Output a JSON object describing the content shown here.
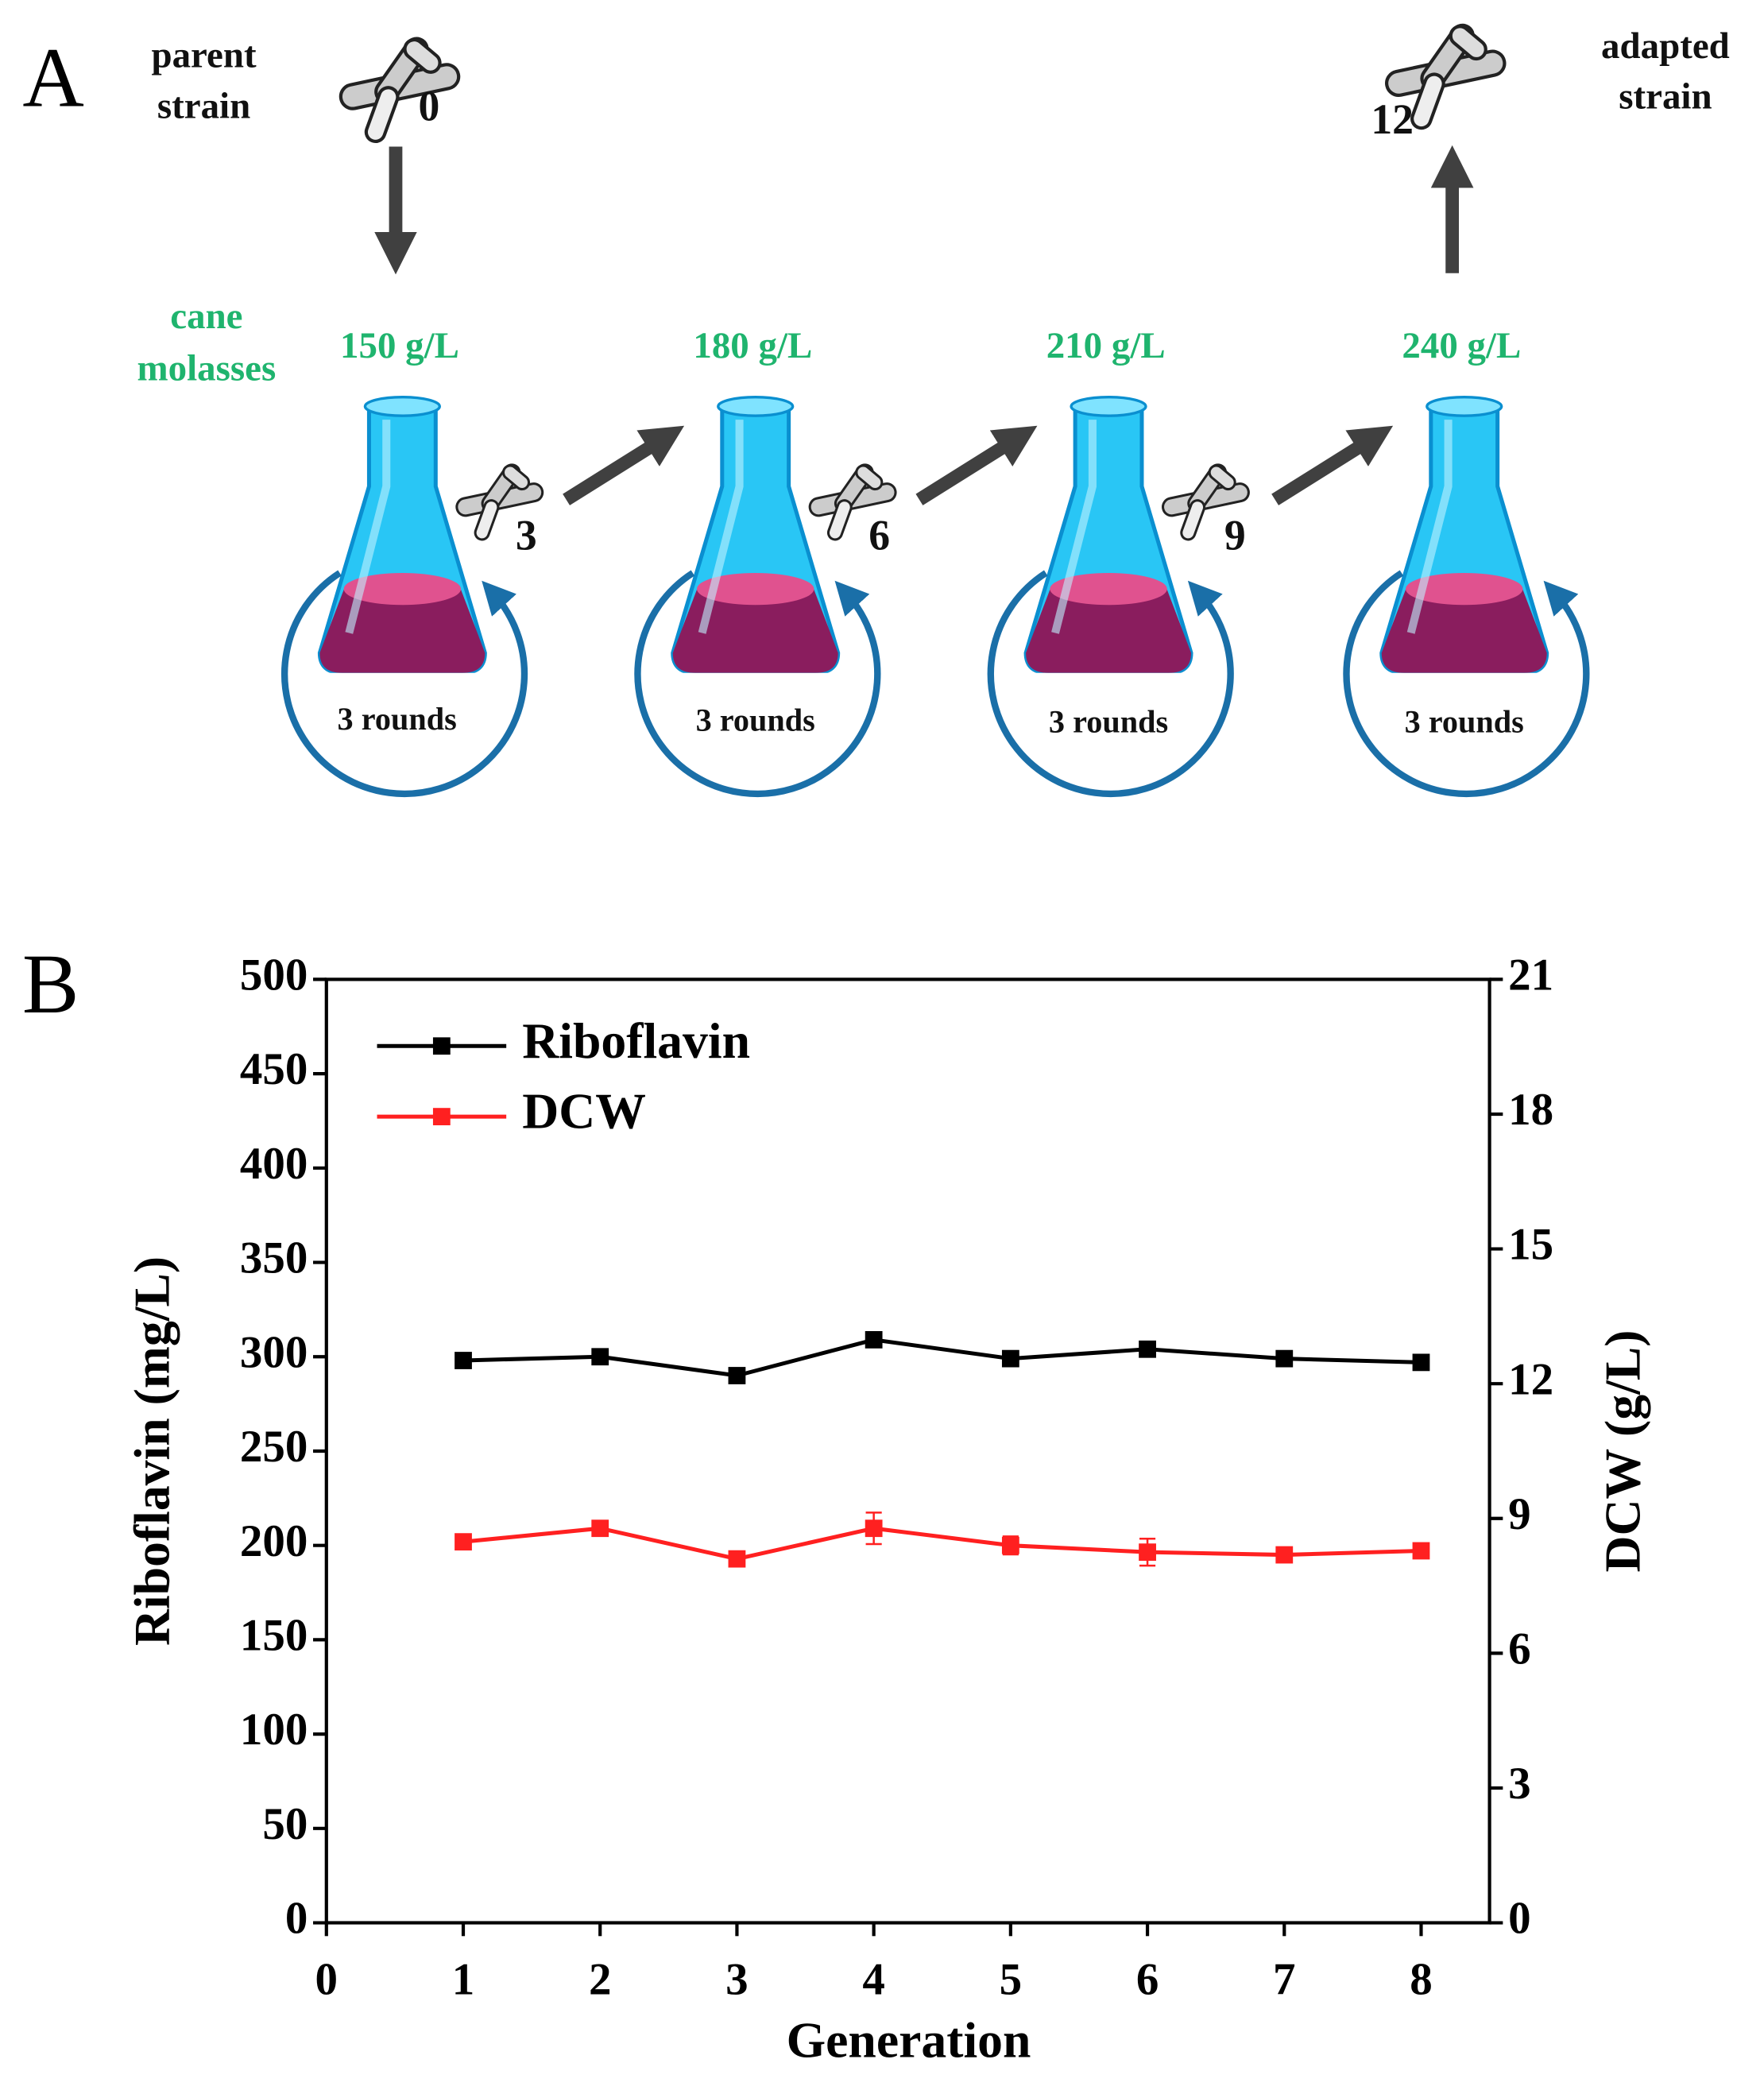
{
  "diagram": {
    "panel_label": "A",
    "parent": [
      "parent",
      "strain"
    ],
    "parent_generation": "0",
    "adapted": [
      "adapted",
      "strain"
    ],
    "adapted_generation": "12",
    "medium": [
      "cane",
      "molasses"
    ],
    "concentrations": [
      "150 g/L",
      "180 g/L",
      "210 g/L",
      "240 g/L"
    ],
    "generations": [
      "3",
      "6",
      "9"
    ],
    "rounds": [
      "3 rounds",
      "3 rounds",
      "3 rounds",
      "3 rounds"
    ]
  },
  "chart_data": {
    "type": "line",
    "panel_label": "B",
    "x_label": "Generation",
    "y_label": "Riboflavin (mg/L)",
    "y2_label": "DCW (g/L)",
    "x": [
      1,
      2,
      3,
      4,
      5,
      6,
      7,
      8
    ],
    "series": [
      {
        "name": "Riboflavin",
        "color": "#000000",
        "values": [
          298,
          300,
          290,
          309,
          299,
          304,
          299,
          297
        ]
      },
      {
        "name": "DCW",
        "color": "#ff2020",
        "axis": "y2",
        "values": [
          8.48,
          8.78,
          8.1,
          8.78,
          8.4,
          8.25,
          8.19,
          8.28
        ],
        "errors": [
          0.1,
          0.1,
          0.1,
          0.35,
          0.2,
          0.3,
          0.1,
          0.1
        ]
      }
    ],
    "xlim": [
      0,
      8.5
    ],
    "xticks": [
      0,
      1,
      2,
      3,
      4,
      5,
      6,
      7,
      8
    ],
    "ylim": [
      0,
      500
    ],
    "yticks": [
      0,
      50,
      100,
      150,
      200,
      250,
      300,
      350,
      400,
      450,
      500
    ],
    "y2lim": [
      0,
      21
    ],
    "y2ticks": [
      0,
      3,
      6,
      9,
      12,
      15,
      18,
      21
    ],
    "legend": "upper left"
  }
}
